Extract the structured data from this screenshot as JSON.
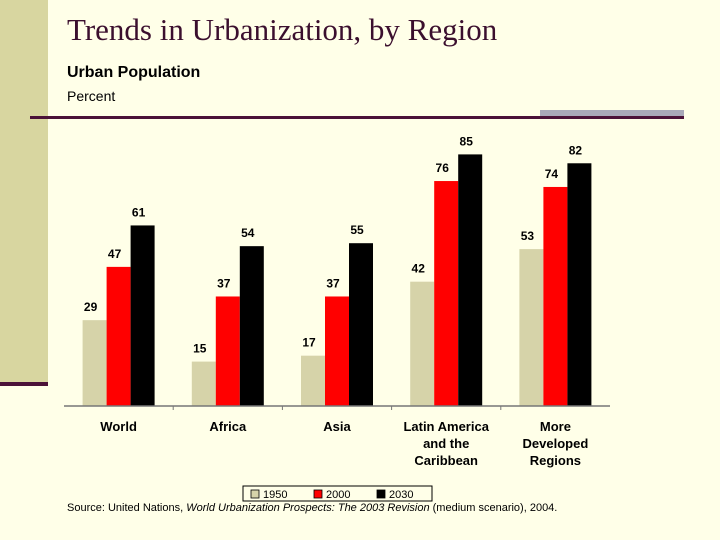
{
  "header": {
    "title": "Trends in Urbanization, by Region",
    "subtitle": "Urban Population",
    "unit_label": "Percent"
  },
  "source": {
    "prefix": "Source: United Nations, ",
    "publication": "World Urbanization Prospects: The 2003 Revision",
    "suffix": " (medium scenario), 2004."
  },
  "chart_data": {
    "type": "bar",
    "title": "Trends in Urbanization, by Region",
    "subtitle": "Urban Population",
    "ylabel": "Percent",
    "xlabel": "",
    "ylim": [
      0,
      100
    ],
    "grid": false,
    "legend_position": "bottom",
    "categories": [
      [
        "World"
      ],
      [
        "Africa"
      ],
      [
        "Asia"
      ],
      [
        "Latin America",
        "and the",
        "Caribbean"
      ],
      [
        "More",
        "Developed",
        "Regions"
      ]
    ],
    "series": [
      {
        "name": "1950",
        "color": "#D6D3A9",
        "values": [
          29,
          15,
          17,
          42,
          53
        ]
      },
      {
        "name": "2000",
        "color": "#FF0000",
        "values": [
          47,
          37,
          37,
          76,
          74
        ]
      },
      {
        "name": "2030",
        "color": "#000000",
        "values": [
          61,
          54,
          55,
          85,
          82
        ]
      }
    ]
  }
}
